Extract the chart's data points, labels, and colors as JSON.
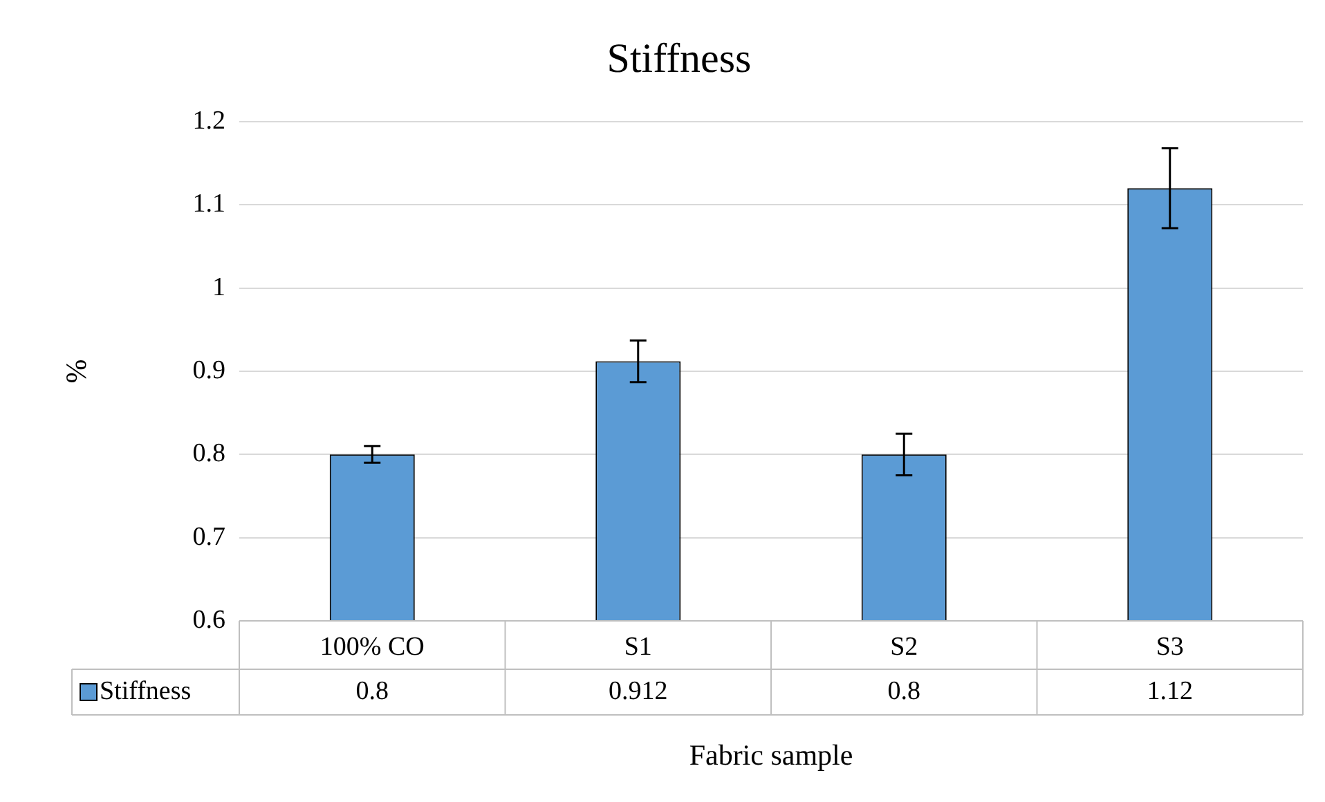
{
  "chart_data": {
    "type": "bar",
    "title": "Stiffness",
    "xlabel": "Fabric sample",
    "ylabel": "%",
    "categories": [
      "100% CO",
      "S1",
      "S2",
      "S3"
    ],
    "series": [
      {
        "name": "Stiffness",
        "color": "#5b9bd5",
        "values": [
          0.8,
          0.912,
          0.8,
          1.12
        ],
        "errors": [
          0.01,
          0.025,
          0.025,
          0.048
        ]
      }
    ],
    "ylim": [
      0.6,
      1.2
    ],
    "yticks": [
      0.6,
      0.7,
      0.8,
      0.9,
      1,
      1.1,
      1.2
    ],
    "grid": "y",
    "legend": "bottom",
    "data_labels": true
  }
}
